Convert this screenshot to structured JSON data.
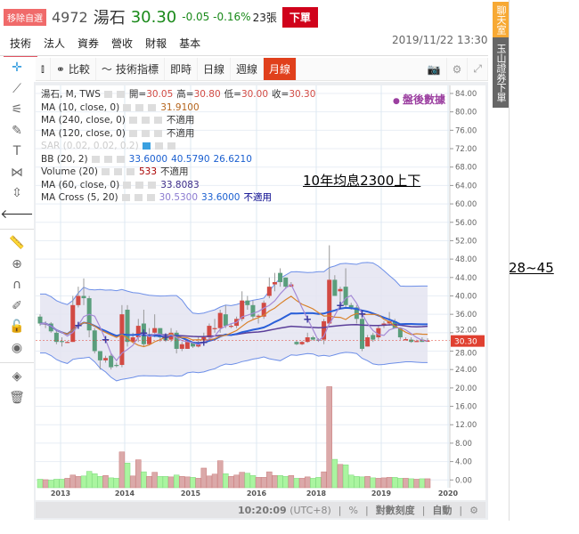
{
  "header": {
    "fav_label": "移除自選",
    "code": "4972",
    "name": "湯石",
    "price": "30.30",
    "change": "-0.05 -0.16%",
    "volume": "23張",
    "order_label": "下單"
  },
  "tabs": [
    {
      "label": "技術",
      "active": true
    },
    {
      "label": "法人"
    },
    {
      "label": "資券"
    },
    {
      "label": "營收"
    },
    {
      "label": "財報"
    },
    {
      "label": "基本"
    }
  ],
  "datetime": "2019/11/22 13:30",
  "toolbar": {
    "compare": "比較",
    "indicators": "技術指標",
    "intraday": "即時",
    "daily": "日線",
    "weekly": "週線",
    "monthly": "月線",
    "active": "月線"
  },
  "side_buttons": {
    "chat": "聊天室",
    "esun": "玉山證券下單"
  },
  "legend": {
    "main": {
      "label": "湯石, M, TWS",
      "open_label": "開=",
      "open": "30.05",
      "high_label": "高=",
      "high": "30.80",
      "low_label": "低=",
      "low": "30.00",
      "close_label": "收=",
      "close": "30.30"
    },
    "ma10": {
      "label": "MA (10, close, 0)",
      "value": "31.9100"
    },
    "ma240": {
      "label": "MA (240, close, 0)",
      "value": "不適用"
    },
    "ma120": {
      "label": "MA (120, close, 0)",
      "value": "不適用"
    },
    "sar": {
      "label": "SAR (0.02, 0.02, 0.2)"
    },
    "bb": {
      "label": "BB (20, 2)",
      "mid": "33.6000",
      "upper": "40.5790",
      "lower": "26.6210"
    },
    "volume": {
      "label": "Volume (20)",
      "value": "533",
      "ma": "不適用"
    },
    "ma60": {
      "label": "MA (60, close, 0)",
      "value": "33.8083"
    },
    "macross": {
      "label": "MA Cross (5, 20)",
      "fast": "30.5300",
      "slow": "33.6000",
      "status": "不適用"
    }
  },
  "after_hours": "盤後數據",
  "annotations": {
    "yield_note": "10年均息2300上下",
    "range_note": "28~45"
  },
  "bottom": {
    "time": "10:20:09",
    "tz": "(UTC+8)",
    "pct": "%",
    "log": "對數刻度",
    "auto": "自動"
  },
  "colors": {
    "up": "#d24a43",
    "down": "#5a9e7c",
    "vol_up": "#dba9a9",
    "vol_down": "#aaf5a0",
    "bb": "#6d8fe8",
    "bb_fill": "#e4e4f1",
    "ma10": "#d9822b",
    "ma5": "#a58ad6",
    "ma20": "#2a5fd8",
    "ma60": "#5b3f9a",
    "cross": "#3b3ba0",
    "last": "#e04030"
  },
  "chart_data": {
    "type": "candlestick",
    "interval": "monthly",
    "price_axis": {
      "ticks": [
        "84.00",
        "80.00",
        "76.00",
        "72.00",
        "68.00",
        "64.00",
        "60.00",
        "56.00",
        "52.00",
        "48.00",
        "44.00",
        "40.00",
        "36.00",
        "32.00",
        "28.00",
        "24.00"
      ],
      "min": 24,
      "max": 84
    },
    "volume_axis": {
      "ticks": [
        "20.00",
        "16.00",
        "12.00",
        "8.00",
        "4.00",
        "0.00"
      ],
      "min": 0,
      "max": 20
    },
    "x_ticks": [
      "2013",
      "2014",
      "2015",
      "2016",
      "2018",
      "2019",
      "2020"
    ],
    "last_price_tag": "30.30",
    "ohlc": [
      [
        35.5,
        36,
        33.5,
        34
      ],
      [
        34,
        34.5,
        33,
        34
      ],
      [
        34,
        34.3,
        32,
        32.3
      ],
      [
        32,
        32.5,
        29.5,
        30
      ],
      [
        30.2,
        31,
        29,
        30
      ],
      [
        30,
        30.2,
        29.8,
        30
      ],
      [
        30,
        40,
        30,
        38
      ],
      [
        38,
        42,
        37.5,
        40
      ],
      [
        40,
        43.8,
        38,
        39.5
      ],
      [
        39.5,
        40,
        31,
        32.5
      ],
      [
        32.5,
        33,
        27.5,
        28
      ],
      [
        28,
        28,
        24,
        26
      ],
      [
        26,
        27,
        25.5,
        26.5
      ],
      [
        27,
        27.5,
        24,
        24.5
      ],
      [
        25,
        25.5,
        24.5,
        24.8
      ],
      [
        25,
        38,
        24.5,
        36
      ],
      [
        37,
        38,
        29,
        30
      ],
      [
        30,
        32,
        29.8,
        31
      ],
      [
        31,
        35,
        30,
        33.5
      ],
      [
        34,
        37,
        29,
        29.5
      ],
      [
        29.5,
        33,
        29.5,
        31.5
      ],
      [
        32,
        36,
        31,
        33
      ],
      [
        33,
        33,
        30,
        31
      ],
      [
        31,
        31.5,
        30,
        30.3
      ],
      [
        30.5,
        33,
        30,
        32
      ],
      [
        32,
        32.5,
        27.5,
        28.5
      ],
      [
        28.5,
        30,
        28,
        29.5
      ],
      [
        28.5,
        30.5,
        28.5,
        30
      ],
      [
        30,
        30,
        28.7,
        29
      ],
      [
        29,
        31,
        28.8,
        30
      ],
      [
        30.5,
        32,
        30,
        31
      ],
      [
        31,
        34,
        30.5,
        33.5
      ],
      [
        33,
        35,
        32,
        33
      ],
      [
        33,
        37,
        32,
        36.3
      ],
      [
        36,
        38,
        33,
        33.5
      ],
      [
        33.5,
        34,
        33,
        33.5
      ],
      [
        33.5,
        35.5,
        33,
        35
      ],
      [
        35,
        41,
        34.5,
        39
      ],
      [
        39,
        40,
        37,
        38
      ],
      [
        38,
        39,
        35,
        35.5
      ],
      [
        35.5,
        36,
        34,
        35.7
      ],
      [
        35.5,
        39,
        35,
        38.5
      ],
      [
        40,
        44,
        39.5,
        42
      ],
      [
        42.5,
        45,
        41,
        43
      ],
      [
        45,
        46,
        42,
        43
      ],
      [
        44,
        44,
        41.5,
        42
      ],
      [
        42,
        43,
        42,
        42.5
      ],
      [
        30,
        30.3,
        29.3,
        29.5
      ],
      [
        29.5,
        30.2,
        29.3,
        30
      ],
      [
        30,
        32,
        29.8,
        31
      ],
      [
        31,
        31.3,
        30.3,
        30.5
      ],
      [
        30.5,
        30.8,
        30,
        30.3
      ],
      [
        30.5,
        35,
        29.5,
        34.5
      ],
      [
        34,
        51,
        34,
        43.5
      ],
      [
        43.5,
        44.5,
        40,
        40
      ],
      [
        41,
        42,
        38,
        41.5
      ],
      [
        42,
        46,
        37.5,
        38
      ],
      [
        38,
        38.5,
        37,
        37.5
      ],
      [
        37.5,
        38,
        34,
        35
      ],
      [
        35,
        36,
        28,
        28.5
      ],
      [
        29,
        31.5,
        29,
        31
      ],
      [
        31.5,
        32,
        30,
        30.5
      ],
      [
        31,
        33.5,
        30.5,
        33
      ],
      [
        33.5,
        34.5,
        33,
        34
      ],
      [
        34,
        36.5,
        33.5,
        34.5
      ],
      [
        34.5,
        35,
        33,
        33
      ],
      [
        33,
        33,
        30.5,
        31
      ],
      [
        30.5,
        31,
        30.3,
        30.6
      ],
      [
        30.5,
        31,
        29.8,
        30
      ],
      [
        30.2,
        30.5,
        30,
        30.2
      ],
      [
        30.5,
        31,
        30,
        30
      ],
      [
        30.05,
        30.8,
        30,
        30.3
      ]
    ],
    "volume": [
      0.3,
      0.2,
      0.1,
      0.3,
      0.3,
      0.5,
      1.2,
      0.9,
      1.0,
      2.0,
      1.5,
      0.9,
      1.1,
      0.6,
      0.5,
      6.2,
      3.8,
      1.0,
      4.5,
      1.9,
      0.9,
      1.8,
      0.9,
      0.9,
      0.8,
      1.2,
      0.9,
      0.8,
      0.7,
      0.5,
      2.7,
      1.0,
      1.4,
      4.3,
      1.5,
      0.9,
      1.2,
      1.8,
      1.6,
      1.1,
      0.7,
      0.7,
      1.9,
      1.1,
      1.1,
      0.9,
      1.1,
      0.5,
      0.5,
      0.8,
      0.5,
      0.7,
      1.9,
      20.3,
      4.6,
      3.5,
      3.4,
      1.2,
      0.9,
      0.8,
      0.9,
      0.6,
      0.5,
      0.6,
      0.7,
      0.7,
      0.5,
      0.5,
      0.4,
      0.3,
      0.4,
      0.4
    ]
  }
}
